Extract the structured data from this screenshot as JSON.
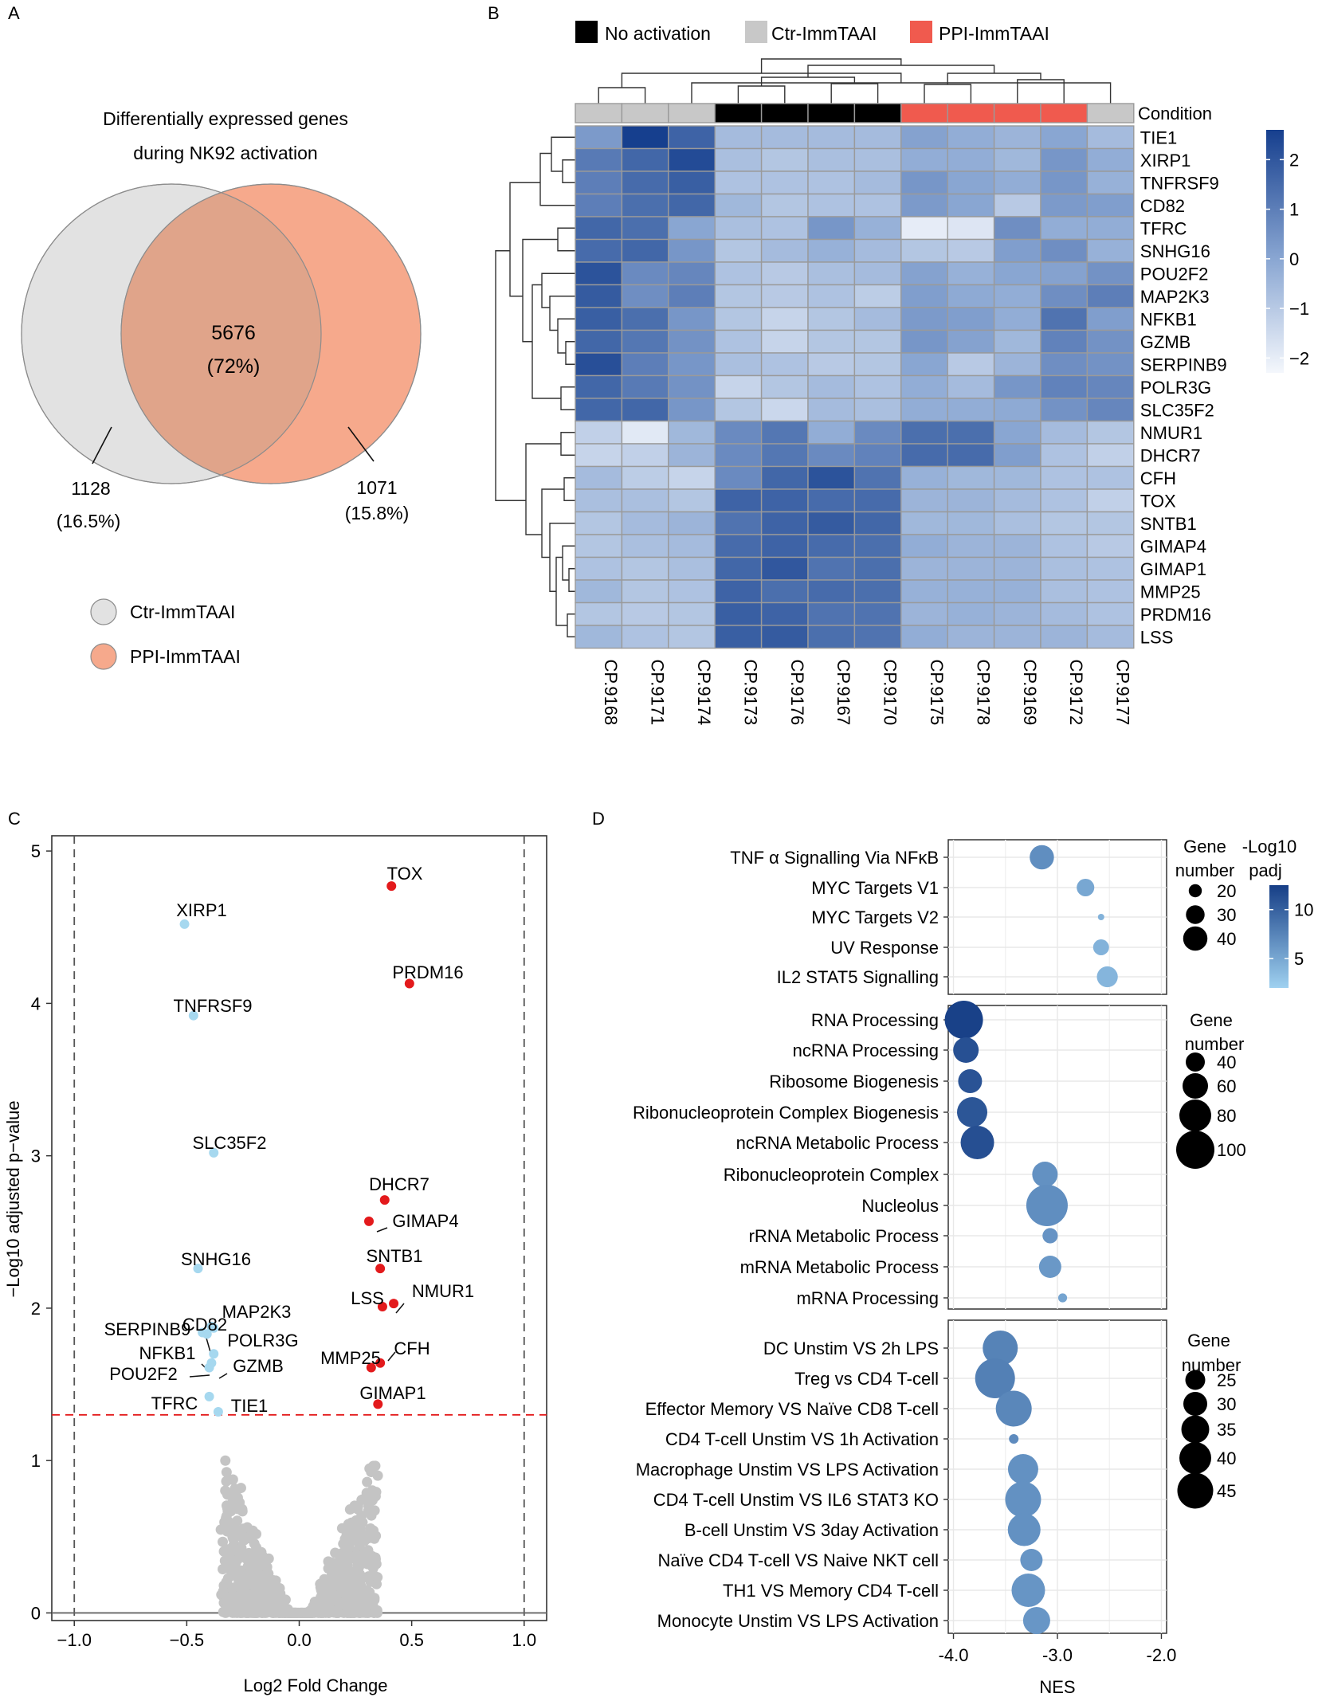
{
  "colors": {
    "venn_ctr": "#e2e2e2",
    "venn_ppi": "#f6a98c",
    "venn_overlap": "#e0a48a",
    "no_activation": "#000000",
    "ctr_immtaai": "#c8c8c8",
    "ppi_immtaai": "#f05a4e",
    "heat_low": "#f4f7fc",
    "heat_high": "#163f8e",
    "volcano_up": "#e31a1c",
    "volcano_down": "#a6d8ef",
    "volcano_ns": "#c4c4c4",
    "gsea_low": "#9fd1f0",
    "gsea_high": "#163e86"
  },
  "panel_labels": {
    "a": "A",
    "b": "B",
    "c": "C",
    "d": "D"
  },
  "chart_data": [
    {
      "type": "venn",
      "panel": "A",
      "title_line1": "Differentially expressed genes",
      "title_line2": "during NK92 activation",
      "overlap_value": "5676",
      "overlap_percent": "(72%)",
      "left_only_value": "1128",
      "left_only_percent": "(16.5%)",
      "right_only_value": "1071",
      "right_only_percent": "(15.8%)",
      "legend": [
        "Ctr-ImmTAAI",
        "PPI-ImmTAAI"
      ]
    },
    {
      "type": "heatmap",
      "panel": "B",
      "legend_items": [
        "No activation",
        "Ctr-ImmTAAI",
        "PPI-ImmTAAI"
      ],
      "condition_label": "Condition",
      "columns": [
        "CP.9168",
        "CP.9171",
        "CP.9174",
        "CP.9173",
        "CP.9176",
        "CP.9167",
        "CP.9170",
        "CP.9175",
        "CP.9178",
        "CP.9169",
        "CP.9172",
        "CP.9177"
      ],
      "column_condition": [
        "Ctr-ImmTAAI",
        "Ctr-ImmTAAI",
        "Ctr-ImmTAAI",
        "No activation",
        "No activation",
        "No activation",
        "No activation",
        "PPI-ImmTAAI",
        "PPI-ImmTAAI",
        "PPI-ImmTAAI",
        "PPI-ImmTAAI",
        "Ctr-ImmTAAI"
      ],
      "rows": [
        "TIE1",
        "XIRP1",
        "TNFRSF9",
        "CD82",
        "TFRC",
        "SNHG16",
        "POU2F2",
        "MAP2K3",
        "NFKB1",
        "GZMB",
        "SERPINB9",
        "POLR3G",
        "SLC35F2",
        "NMUR1",
        "DHCR7",
        "CFH",
        "TOX",
        "SNTB1",
        "GIMAP4",
        "GIMAP1",
        "MMP25",
        "PRDM16",
        "LSS"
      ],
      "values": [
        [
          0.3,
          2.6,
          1.7,
          -0.6,
          -0.6,
          -0.6,
          -0.6,
          0.1,
          -0.2,
          -0.4,
          0.0,
          -0.6
        ],
        [
          1.1,
          1.6,
          2.3,
          -0.7,
          -0.9,
          -0.7,
          -0.7,
          -0.2,
          -0.2,
          -0.5,
          0.4,
          -0.2
        ],
        [
          1.0,
          1.5,
          1.8,
          -0.8,
          -0.8,
          -0.8,
          -0.6,
          0.4,
          0.0,
          -0.2,
          0.4,
          -0.3
        ],
        [
          1.0,
          1.4,
          1.6,
          -0.5,
          -0.9,
          -0.8,
          -0.8,
          0.3,
          0.0,
          -1.0,
          0.3,
          0.2
        ],
        [
          1.6,
          1.4,
          0.0,
          -0.7,
          -0.8,
          0.4,
          -0.3,
          -2.0,
          -1.8,
          0.6,
          -0.2,
          -0.2
        ],
        [
          1.5,
          1.6,
          0.4,
          -0.9,
          -0.6,
          -0.3,
          -0.6,
          -0.9,
          -1.0,
          0.2,
          0.6,
          -0.3
        ],
        [
          2.1,
          0.7,
          0.8,
          -0.8,
          -1.0,
          -0.7,
          -0.6,
          0.1,
          -0.3,
          0.0,
          0.1,
          0.5
        ],
        [
          1.9,
          0.6,
          1.0,
          -0.9,
          -1.0,
          -0.8,
          -1.1,
          0.2,
          -0.1,
          -0.2,
          0.6,
          1.0
        ],
        [
          1.8,
          1.4,
          0.4,
          -0.9,
          -1.3,
          -0.9,
          -0.6,
          0.3,
          0.2,
          -0.2,
          1.3,
          0.2
        ],
        [
          1.6,
          1.2,
          0.5,
          -0.8,
          -1.3,
          -0.9,
          -0.9,
          0.4,
          0.1,
          -0.5,
          0.9,
          0.5
        ],
        [
          2.2,
          1.0,
          0.4,
          -0.7,
          -0.8,
          -1.0,
          -0.9,
          0.0,
          -1.0,
          -0.4,
          0.6,
          0.5
        ],
        [
          1.6,
          1.1,
          0.5,
          -1.3,
          -0.9,
          -0.6,
          -0.8,
          -0.2,
          -0.6,
          0.4,
          0.9,
          0.8
        ],
        [
          1.6,
          1.6,
          0.4,
          -0.9,
          -1.4,
          -0.6,
          -0.7,
          -0.2,
          -0.2,
          -0.1,
          0.5,
          0.8
        ],
        [
          -1.2,
          -1.9,
          -0.5,
          0.7,
          1.2,
          -0.2,
          0.7,
          1.4,
          1.4,
          0.0,
          -0.6,
          -0.9
        ],
        [
          -1.3,
          -1.2,
          -0.4,
          0.7,
          1.2,
          0.7,
          0.9,
          1.5,
          1.5,
          0.2,
          -0.8,
          -1.2
        ],
        [
          -0.6,
          -1.1,
          -1.3,
          0.7,
          1.6,
          2.1,
          1.3,
          -0.3,
          -0.5,
          -0.5,
          -0.8,
          -0.8
        ],
        [
          -0.7,
          -0.7,
          -0.9,
          1.7,
          1.7,
          1.5,
          1.5,
          -0.4,
          -0.4,
          -0.6,
          -0.8,
          -1.2
        ],
        [
          -0.9,
          -0.6,
          -0.4,
          1.3,
          1.7,
          1.9,
          1.6,
          -0.5,
          -0.5,
          -0.7,
          -0.9,
          -0.9
        ],
        [
          -0.9,
          -0.7,
          -0.6,
          1.5,
          1.7,
          1.5,
          1.4,
          -0.2,
          -0.4,
          -0.4,
          -0.8,
          -1.0
        ],
        [
          -0.8,
          -0.9,
          -0.7,
          1.6,
          2.0,
          1.3,
          1.4,
          -0.4,
          -0.4,
          -0.4,
          -0.7,
          -0.8
        ],
        [
          -0.5,
          -0.9,
          -0.8,
          1.7,
          1.4,
          1.5,
          1.4,
          -0.3,
          -0.3,
          -0.3,
          -0.7,
          -0.8
        ],
        [
          -0.9,
          -1.0,
          -0.9,
          1.8,
          1.7,
          1.3,
          1.3,
          -0.4,
          -0.3,
          -0.4,
          -0.6,
          -0.8
        ],
        [
          -0.5,
          -0.8,
          -0.9,
          1.8,
          1.9,
          1.4,
          1.3,
          -0.2,
          -0.4,
          -0.4,
          -0.4,
          -0.6
        ]
      ],
      "colorbar_ticks": [
        "2",
        "1",
        "0",
        "−1",
        "−2"
      ],
      "colorbar_range": [
        -2.3,
        2.6
      ]
    },
    {
      "type": "scatter",
      "panel": "C",
      "xlabel": "Log2 Fold Change",
      "ylabel": "−Log10 adjusted p−value",
      "xlim": [
        -1.1,
        1.1
      ],
      "ylim": [
        -0.05,
        5.1
      ],
      "xticks": [
        -1.0,
        -0.5,
        0.0,
        0.5,
        1.0
      ],
      "xtick_labels": [
        "−1.0",
        "−0.5",
        "0.0",
        "0.5",
        "1.0"
      ],
      "yticks": [
        0,
        1,
        2,
        3,
        4,
        5
      ],
      "ytick_labels": [
        "0",
        "1",
        "2",
        "3",
        "4",
        "5"
      ],
      "fc_threshold": [
        -1.0,
        1.0
      ],
      "p_threshold": 1.3,
      "labeled_points": [
        {
          "gene": "TOX",
          "x": 0.41,
          "y": 4.77,
          "dir": "up"
        },
        {
          "gene": "PRDM16",
          "x": 0.49,
          "y": 4.13,
          "dir": "up"
        },
        {
          "gene": "DHCR7",
          "x": 0.38,
          "y": 2.71,
          "dir": "up"
        },
        {
          "gene": "GIMAP4",
          "x": 0.31,
          "y": 2.57,
          "dir": "up"
        },
        {
          "gene": "SNTB1",
          "x": 0.36,
          "y": 2.26,
          "dir": "up"
        },
        {
          "gene": "NMUR1",
          "x": 0.42,
          "y": 2.03,
          "dir": "up"
        },
        {
          "gene": "LSS",
          "x": 0.37,
          "y": 2.01,
          "dir": "up"
        },
        {
          "gene": "CFH",
          "x": 0.36,
          "y": 1.64,
          "dir": "up"
        },
        {
          "gene": "MMP25",
          "x": 0.32,
          "y": 1.61,
          "dir": "up"
        },
        {
          "gene": "GIMAP1",
          "x": 0.35,
          "y": 1.37,
          "dir": "up"
        },
        {
          "gene": "XIRP1",
          "x": -0.51,
          "y": 4.52,
          "dir": "down"
        },
        {
          "gene": "TNFRSF9",
          "x": -0.47,
          "y": 3.92,
          "dir": "down"
        },
        {
          "gene": "SLC35F2",
          "x": -0.38,
          "y": 3.02,
          "dir": "down"
        },
        {
          "gene": "SNHG16",
          "x": -0.45,
          "y": 2.26,
          "dir": "down"
        },
        {
          "gene": "CD82",
          "x": -0.43,
          "y": 1.84,
          "dir": "down"
        },
        {
          "gene": "MAP2K3",
          "x": -0.39,
          "y": 1.88,
          "dir": "down"
        },
        {
          "gene": "SERPINB9",
          "x": -0.41,
          "y": 1.83,
          "dir": "down"
        },
        {
          "gene": "POLR3G",
          "x": -0.38,
          "y": 1.87,
          "dir": "down"
        },
        {
          "gene": "NFKB1",
          "x": -0.39,
          "y": 1.64,
          "dir": "down"
        },
        {
          "gene": "GZMB",
          "x": -0.38,
          "y": 1.7,
          "dir": "down"
        },
        {
          "gene": "POU2F2",
          "x": -0.4,
          "y": 1.61,
          "dir": "down"
        },
        {
          "gene": "TFRC",
          "x": -0.4,
          "y": 1.42,
          "dir": "down"
        },
        {
          "gene": "TIE1",
          "x": -0.36,
          "y": 1.32,
          "dir": "down"
        }
      ],
      "ns_point_count": 900
    },
    {
      "type": "dot",
      "panel": "D",
      "xlabel": "NES",
      "xlim": [
        -4.05,
        -1.95
      ],
      "xticks": [
        -4.0,
        -3.0,
        -2.0
      ],
      "xtick_labels": [
        "-4.0",
        "-3.0",
        "-2.0"
      ],
      "color_label_line1": "-Log10",
      "color_label_line2": "padj",
      "color_ticks": [
        10,
        5
      ],
      "color_range": [
        2,
        12.5
      ],
      "facets": [
        {
          "size_title_line1": "Gene",
          "size_title_line2": "number",
          "size_legend": [
            20,
            30,
            40
          ],
          "size_range": [
            8,
            45
          ],
          "terms": [
            {
              "name": "TNF α Signalling Via NFκB",
              "nes": -3.15,
              "size": 40,
              "padj": 6.8
            },
            {
              "name": "MYC Targets V1",
              "nes": -2.73,
              "size": 28,
              "padj": 5.0
            },
            {
              "name": "MYC Targets V2",
              "nes": -2.58,
              "size": 8,
              "padj": 4.2
            },
            {
              "name": "UV Response",
              "nes": -2.58,
              "size": 25,
              "padj": 4.2
            },
            {
              "name": "IL2 STAT5 Signalling",
              "nes": -2.52,
              "size": 34,
              "padj": 4.0
            }
          ]
        },
        {
          "size_title_line1": "Gene",
          "size_title_line2": "number",
          "size_legend": [
            40,
            60,
            80,
            100
          ],
          "size_range": [
            5,
            110
          ],
          "terms": [
            {
              "name": "RNA Processing",
              "nes": -3.9,
              "size": 100,
              "padj": 12.3
            },
            {
              "name": "ncRNA Processing",
              "nes": -3.88,
              "size": 60,
              "padj": 11.2
            },
            {
              "name": "Ribosome Biogenesis",
              "nes": -3.84,
              "size": 55,
              "padj": 11.0
            },
            {
              "name": "Ribonucleoprotein Complex Biogenesis",
              "nes": -3.82,
              "size": 75,
              "padj": 10.8
            },
            {
              "name": "ncRNA Metabolic Process",
              "nes": -3.77,
              "size": 85,
              "padj": 11.3
            },
            {
              "name": "Ribonucleoprotein Complex",
              "nes": -3.12,
              "size": 60,
              "padj": 6.6
            },
            {
              "name": "Nucleolus",
              "nes": -3.1,
              "size": 110,
              "padj": 6.8
            },
            {
              "name": "rRNA Metabolic Process",
              "nes": -3.07,
              "size": 28,
              "padj": 6.4
            },
            {
              "name": "mRNA Metabolic Process",
              "nes": -3.07,
              "size": 50,
              "padj": 6.1
            },
            {
              "name": "mRNA Processing",
              "nes": -2.95,
              "size": 8,
              "padj": 5.2
            }
          ]
        },
        {
          "size_title_line1": "Gene",
          "size_title_line2": "number",
          "size_legend": [
            25,
            30,
            35,
            40,
            45
          ],
          "size_range": [
            10,
            50
          ],
          "terms": [
            {
              "name": "DC Unstim  VS 2h LPS",
              "nes": -3.55,
              "size": 44,
              "padj": 7.6
            },
            {
              "name": "Treg vs CD4 T-cell",
              "nes": -3.6,
              "size": 50,
              "padj": 7.8
            },
            {
              "name": "Effector Memory VS Naïve CD8 T-cell",
              "nes": -3.42,
              "size": 45,
              "padj": 7.3
            },
            {
              "name": "CD4 T-cell Unstim VS 1h Activation",
              "nes": -3.42,
              "size": 12,
              "padj": 7.0
            },
            {
              "name": "Macrophage Unstim VS LPS Activation",
              "nes": -3.33,
              "size": 38,
              "padj": 6.6
            },
            {
              "name": "CD4 T-cell Unstim VS IL6 STAT3 KO",
              "nes": -3.33,
              "size": 45,
              "padj": 6.6
            },
            {
              "name": "B-cell Unstim VS 3day Activation",
              "nes": -3.32,
              "size": 41,
              "padj": 6.6
            },
            {
              "name": "Naïve CD4 T-cell VS Naive NKT cell",
              "nes": -3.25,
              "size": 28,
              "padj": 6.3
            },
            {
              "name": "TH1 VS Memory CD4 T-cell",
              "nes": -3.28,
              "size": 42,
              "padj": 6.3
            },
            {
              "name": "Monocyte Unstim VS LPS Activation",
              "nes": -3.2,
              "size": 34,
              "padj": 6.2
            }
          ]
        }
      ]
    }
  ]
}
